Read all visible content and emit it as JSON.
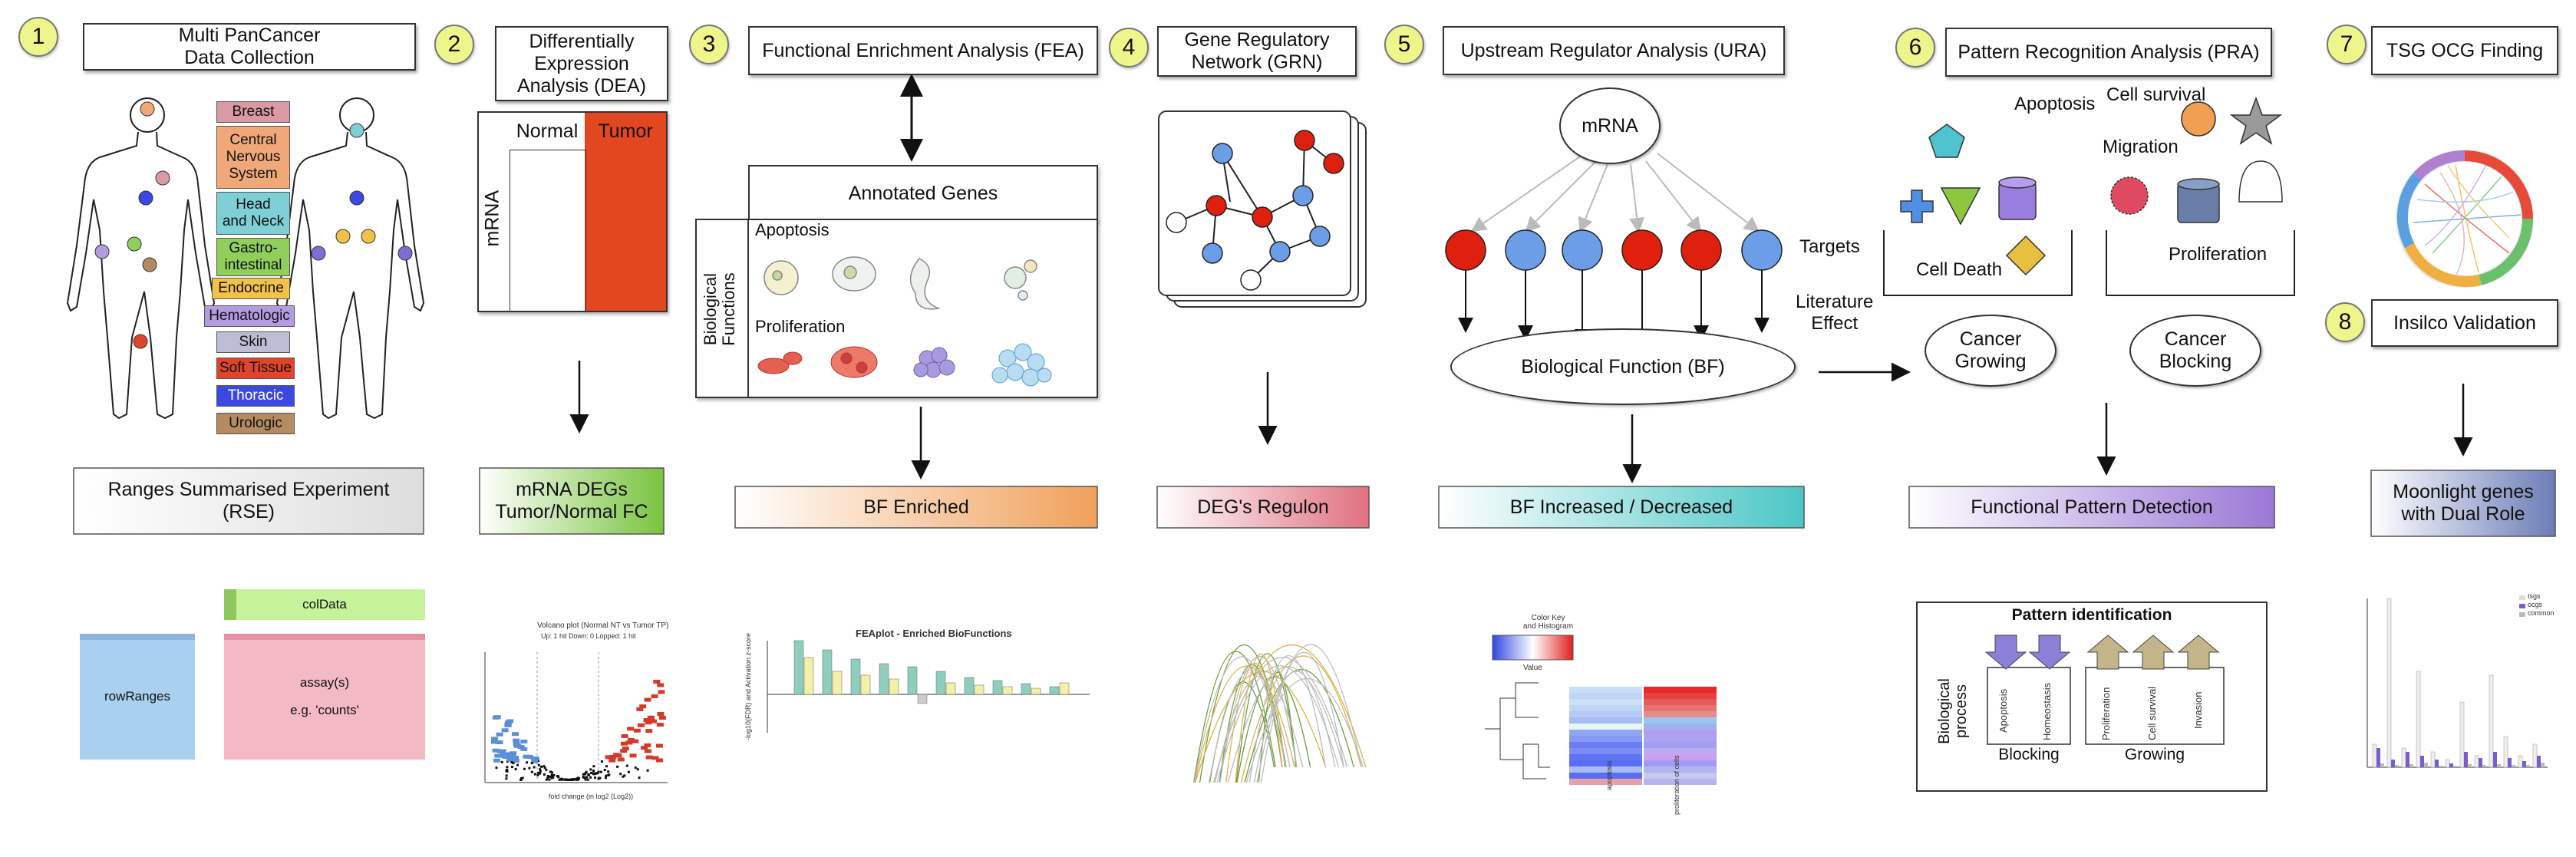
{
  "steps": [
    {
      "num": "1",
      "title": "Multi PanCancer\nData Collection"
    },
    {
      "num": "2",
      "title": "Differentially\nExpression\nAnalysis (DEA)"
    },
    {
      "num": "3",
      "title": "Functional  Enrichment Analysis (FEA)"
    },
    {
      "num": "4",
      "title": "Gene Regulatory\nNetwork (GRN)"
    },
    {
      "num": "5",
      "title": "Upstream Regulator Analysis (URA)"
    },
    {
      "num": "6",
      "title": "Pattern Recognition Analysis (PRA)"
    },
    {
      "num": "7",
      "title": "TSG OCG Finding"
    },
    {
      "num": "8",
      "title": "Insilco Validation"
    }
  ],
  "tissues": [
    "Breast",
    "Central\nNervous\nSystem",
    "Head\nand Neck",
    "Gastro-\nintestinal",
    "Endocrine",
    "Hematologic",
    "Skin",
    "Soft Tissue",
    "Thoracic",
    "Urologic"
  ],
  "colors": {
    "breast": "#d99aa5",
    "cns": "#f0a878",
    "headneck": "#7fd0d6",
    "gastro": "#8fcf5a",
    "endocrine": "#f3c24a",
    "hematologic": "#b39be0",
    "skin": "#bdbdd6",
    "softtissue": "#e0442a",
    "thoracic": "#3b49e0",
    "urologic": "#b58b62",
    "tumor": "#e2471f",
    "red_node": "#e0200e",
    "blue_node": "#6b9ee6"
  },
  "outputs": {
    "rse": "Ranges Summarised Experiment\n(RSE)",
    "degs": "mRNA DEGs\nTumor/Normal FC",
    "bf_enriched": "BF Enriched",
    "regulon": "DEG's Regulon",
    "bf_incdec": "BF Increased / Decreased",
    "fpd": "Functional Pattern Detection",
    "moonlight": "Moonlight genes\nwith Dual Role"
  },
  "rse_panel": {
    "coldata": "colData",
    "rowranges": "rowRanges",
    "assay": "assay(s)\n\ne.g. 'counts'"
  },
  "dea": {
    "normal": "Normal",
    "tumor": "Tumor",
    "mrna": "mRNA"
  },
  "fea": {
    "annotated": "Annotated Genes",
    "bio": "Biological\nFunctions",
    "apoptosis": "Apoptosis",
    "proliferation": "Proliferation"
  },
  "ura": {
    "mrna": "mRNA",
    "bf": "Biological Function (BF)",
    "targets": "Targets"
  },
  "pra": {
    "apoptosis": "Apoptosis",
    "cell_survival": "Cell survival",
    "migration": "Migration",
    "cell_death": "Cell Death",
    "proliferation": "Proliferation",
    "lit": "Literature\nEffect",
    "growing": "Cancer\nGrowing",
    "blocking": "Cancer\nBlocking"
  },
  "pattern": {
    "title": "Pattern identification",
    "bio": "Biological\nprocess",
    "blocking": "Blocking",
    "growing": "Growing",
    "labels": [
      "Apoptosis",
      "Homeostasis",
      "Proliferation",
      "Cell survival",
      "Invasion"
    ]
  },
  "feaplot": {
    "title": "FEAplot - Enriched BioFunctions",
    "ylabel": "-log10(FDR) and Activation z-score"
  },
  "volcano": {
    "title": "Volcano plot (Normal NT vs Tumor TP)",
    "subtitle": "Up: 1 hit Down: 0 Lopped: 1 hit",
    "xlabel": "fold change (in log2 (Log2))"
  },
  "heatmap": {
    "key": "Color Key\nand Histogram",
    "value": "Value",
    "cols": [
      "apoptosis",
      "proliferation of cells"
    ]
  },
  "moon_legend": [
    "tsgs",
    "ocgs",
    "common"
  ]
}
